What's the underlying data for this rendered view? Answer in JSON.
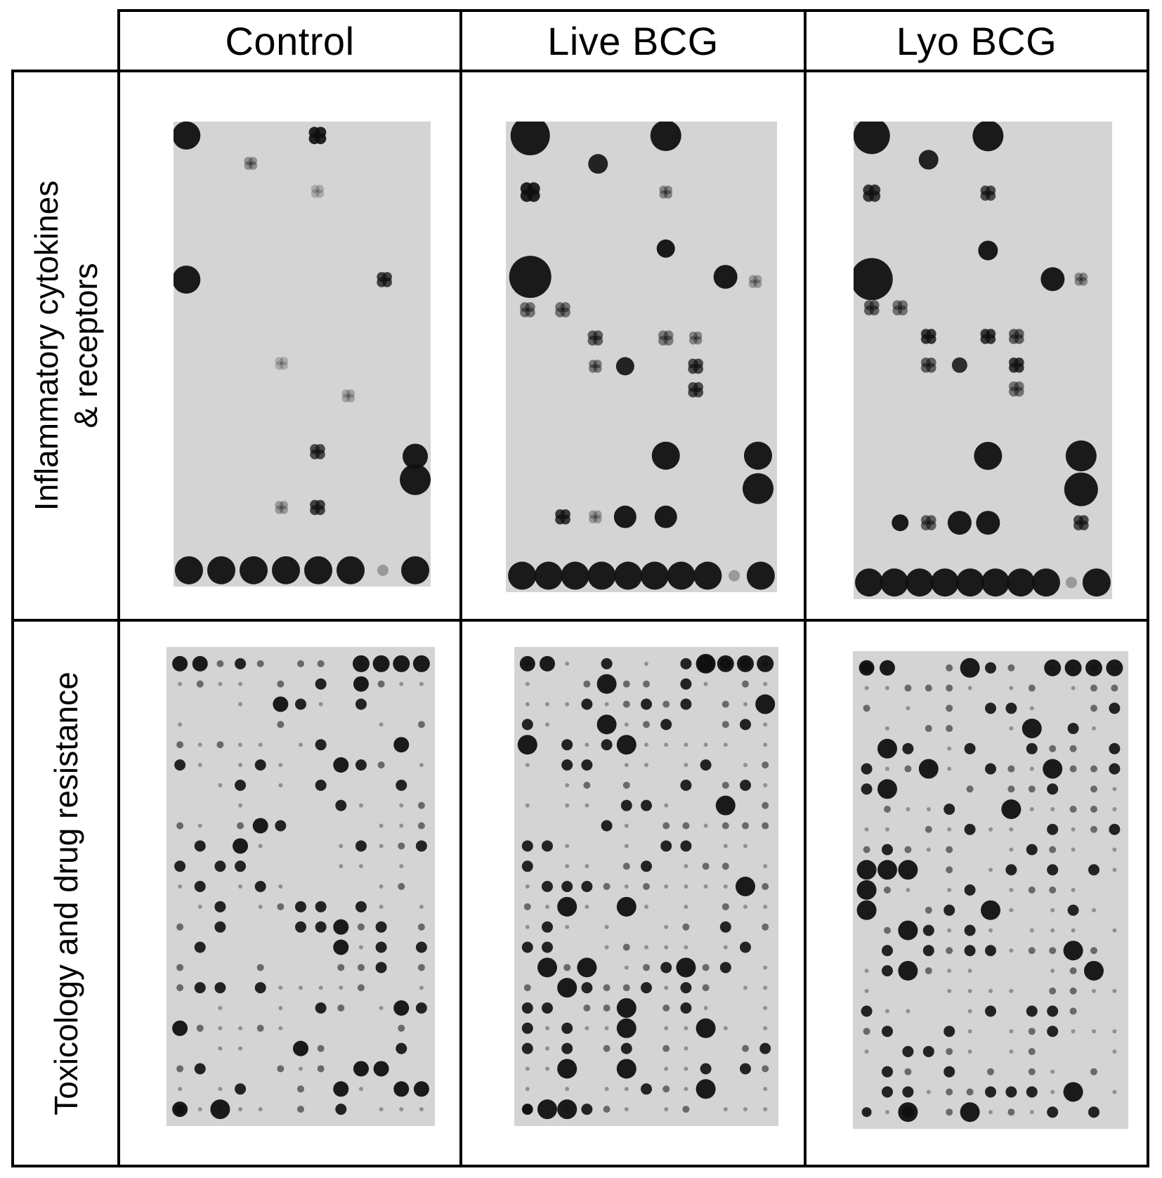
{
  "columns": [
    {
      "label": "Control"
    },
    {
      "label": "Live BCG"
    },
    {
      "label": "Lyo BCG"
    }
  ],
  "rows": [
    {
      "line1": "Inflammatory cytokines",
      "line2": "& receptors"
    },
    {
      "line1": "Toxicology and drug resistance",
      "line2": ""
    }
  ],
  "colors": {
    "membrane": "#d4d4d4",
    "spot": "#101010",
    "border": "#000000"
  }
}
